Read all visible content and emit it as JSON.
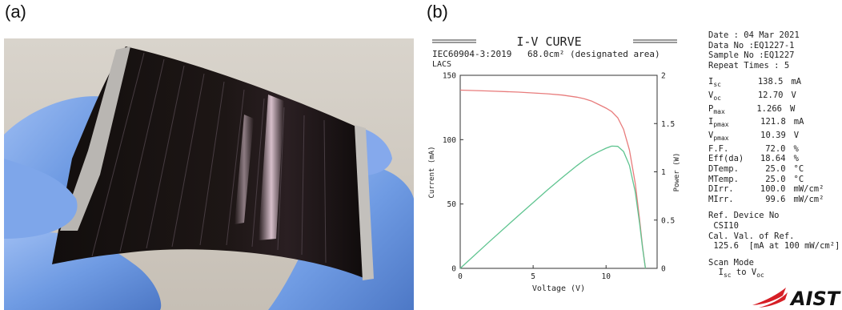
{
  "panels": {
    "a": "(a)",
    "b": "(b)"
  },
  "colors": {
    "current_curve": "#e87c7c",
    "power_curve": "#5fc490",
    "glove": "#6f9be3",
    "cell": "#171210",
    "logo_red": "#d61f26"
  },
  "photo": {
    "content": "flexible-perovskite-solar-cell-held-in-gloved-hand"
  },
  "chart_header": {
    "title": "I-V CURVE",
    "standard": "IEC60904-3:2019",
    "area": "68.0cm² (designated area)",
    "lab": "LACS"
  },
  "chart_data": {
    "type": "line",
    "title": "I-V CURVE",
    "xlabel": "Voltage (V)",
    "ylabel": "Current (mA)",
    "y2label": "Power (W)",
    "xlim": [
      0,
      13.5
    ],
    "ylim": [
      0,
      150
    ],
    "y2lim": [
      0,
      2
    ],
    "xticks": [
      0,
      5,
      10
    ],
    "yticks": [
      0,
      50,
      100,
      150
    ],
    "y2ticks": [
      0,
      0.5,
      1,
      1.5,
      2
    ],
    "ytick_labels": [
      "0",
      "50",
      "100",
      "150"
    ],
    "y2tick_labels": [
      "0",
      "0.5",
      "1",
      "1.5",
      "2"
    ],
    "xtick_labels": [
      "0",
      "5",
      "10"
    ],
    "grid": false,
    "series": [
      {
        "axis": "left",
        "x": [
          0,
          2,
          4,
          6,
          7,
          8,
          8.5,
          9,
          9.5,
          10,
          10.39,
          10.8,
          11.2,
          11.6,
          12.0,
          12.3,
          12.5,
          12.7
        ],
        "y": [
          138.5,
          137.8,
          136.9,
          135.6,
          134.6,
          133.0,
          131.8,
          130.0,
          127.3,
          124.5,
          121.8,
          117.0,
          108.0,
          92.0,
          66.0,
          38.0,
          17.0,
          0
        ]
      },
      {
        "axis": "right",
        "x": [
          0,
          2,
          4,
          6,
          7,
          8,
          8.5,
          9,
          9.5,
          10,
          10.39,
          10.8,
          11.2,
          11.6,
          12.0,
          12.3,
          12.5,
          12.7
        ],
        "y": [
          0,
          0.276,
          0.548,
          0.814,
          0.942,
          1.064,
          1.12,
          1.17,
          1.209,
          1.245,
          1.266,
          1.264,
          1.21,
          1.067,
          0.792,
          0.467,
          0.213,
          0
        ]
      }
    ]
  },
  "info": {
    "date": "Date : 04 Mar 2021",
    "data_no": "Data No :EQ1227-1",
    "sample_no": "Sample No :EQ1227",
    "repeat": "Repeat Times : 5",
    "params": [
      {
        "sym": "I",
        "sub": "sc",
        "val": "138.5",
        "unit": "mA"
      },
      {
        "sym": "V",
        "sub": "oc",
        "val": "12.70",
        "unit": "V"
      },
      {
        "sym": "P",
        "sub": "max",
        "val": "1.266",
        "unit": "W"
      },
      {
        "sym": "I",
        "sub": "pmax",
        "val": "121.8",
        "unit": "mA"
      },
      {
        "sym": "V",
        "sub": "pmax",
        "val": "10.39",
        "unit": "V"
      },
      {
        "sym": "F.F.",
        "sub": "",
        "val": "72.0",
        "unit": "%"
      },
      {
        "sym": "Eff(da)",
        "sub": "",
        "val": "18.64",
        "unit": "%"
      },
      {
        "sym": "DTemp.",
        "sub": "",
        "val": "25.0",
        "unit": "°C"
      },
      {
        "sym": "MTemp.",
        "sub": "",
        "val": "25.0",
        "unit": "°C"
      },
      {
        "sym": "DIrr.",
        "sub": "",
        "val": "100.0",
        "unit": "mW/cm²"
      },
      {
        "sym": "MIrr.",
        "sub": "",
        "val": "99.6",
        "unit": "mW/cm²"
      }
    ],
    "ref_device_label": "Ref. Device No",
    "ref_device": " CSI10",
    "cal_label": "Cal. Val. of Ref.",
    "cal_value": " 125.6  [mA at 100 mW/cm²]",
    "scan_mode_label": "Scan Mode",
    "scan_prefix": "  I",
    "scan_sub1": "sc",
    "scan_mid": " to V",
    "scan_sub2": "oc"
  },
  "logo": {
    "text": "AIST"
  }
}
